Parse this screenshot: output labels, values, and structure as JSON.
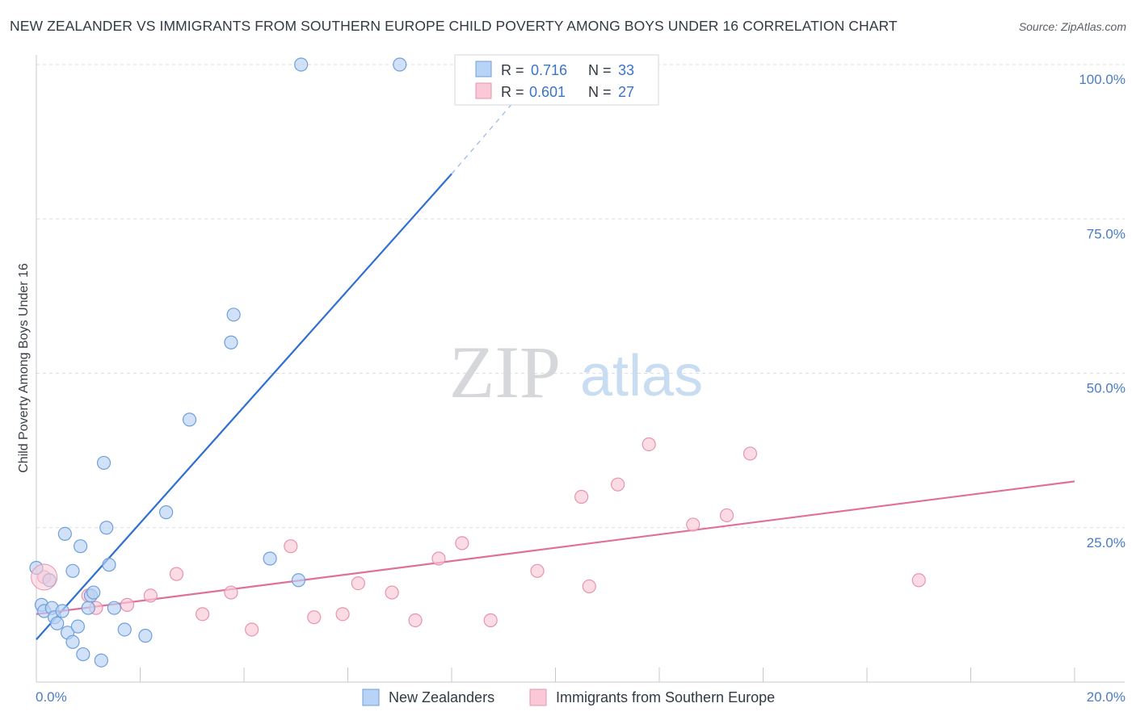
{
  "title": "NEW ZEALANDER VS IMMIGRANTS FROM SOUTHERN EUROPE CHILD POVERTY AMONG BOYS UNDER 16 CORRELATION CHART",
  "source": "Source: ZipAtlas.com",
  "watermark": {
    "zip": "ZIP",
    "atlas": "atlas"
  },
  "colors": {
    "blue_fill": "#b8d3f5",
    "blue_stroke": "#6f9fdc",
    "blue_line": "#2f6fd0",
    "pink_fill": "#f9c9d7",
    "pink_stroke": "#e893ae",
    "pink_line": "#e0709a",
    "grid": "#d9dde3",
    "tick_text": "#4a7cc7"
  },
  "legend": {
    "rows": [
      {
        "r_label": "R = ",
        "r_value": "0.716",
        "n_label": "N = ",
        "n_value": "33"
      },
      {
        "r_label": "R = ",
        "r_value": "0.601",
        "n_label": "N = ",
        "n_value": "27"
      }
    ]
  },
  "chart_data": {
    "type": "scatter",
    "xlabel": "",
    "ylabel": "Child Poverty Among Boys Under 16",
    "xlim": [
      0,
      20
    ],
    "ylim": [
      0,
      100
    ],
    "x_tick_labels": [
      "0.0%",
      "20.0%"
    ],
    "y_tick_labels": [
      "25.0%",
      "50.0%",
      "75.0%",
      "100.0%"
    ],
    "y_ticks": [
      25,
      50,
      75,
      100
    ],
    "grid": true,
    "series": [
      {
        "name": "New Zealanders",
        "r": 0.716,
        "n": 33,
        "points": [
          [
            0.0,
            18.5
          ],
          [
            0.1,
            12.5
          ],
          [
            0.15,
            11.5
          ],
          [
            0.25,
            16.5
          ],
          [
            0.3,
            12.0
          ],
          [
            0.35,
            10.5
          ],
          [
            0.4,
            9.5
          ],
          [
            0.5,
            11.5
          ],
          [
            0.55,
            24.0
          ],
          [
            0.6,
            8.0
          ],
          [
            0.7,
            18.0
          ],
          [
            0.7,
            6.5
          ],
          [
            0.8,
            9.0
          ],
          [
            0.85,
            22.0
          ],
          [
            0.9,
            4.5
          ],
          [
            1.0,
            12.0
          ],
          [
            1.05,
            14.0
          ],
          [
            1.1,
            14.5
          ],
          [
            1.25,
            3.5
          ],
          [
            1.3,
            35.5
          ],
          [
            1.35,
            25.0
          ],
          [
            1.4,
            19.0
          ],
          [
            1.5,
            12.0
          ],
          [
            1.7,
            8.5
          ],
          [
            2.1,
            7.5
          ],
          [
            2.5,
            27.5
          ],
          [
            2.95,
            42.5
          ],
          [
            3.75,
            55.0
          ],
          [
            3.8,
            59.5
          ],
          [
            4.5,
            20.0
          ],
          [
            5.05,
            16.5
          ],
          [
            5.1,
            100.0
          ],
          [
            7.0,
            100.0
          ]
        ],
        "trend": {
          "x": [
            0,
            8
          ],
          "y": [
            6.9,
            82.3
          ],
          "dashed_x": [
            8,
            9.2
          ],
          "dashed_y": [
            82.3,
            94.0
          ]
        }
      },
      {
        "name": "Immigrants from Southern Europe",
        "r": 0.601,
        "n": 27,
        "points": [
          [
            0.15,
            17.0
          ],
          [
            1.0,
            14.0
          ],
          [
            1.15,
            12.0
          ],
          [
            1.75,
            12.5
          ],
          [
            2.2,
            14.0
          ],
          [
            2.7,
            17.5
          ],
          [
            3.2,
            11.0
          ],
          [
            3.75,
            14.5
          ],
          [
            4.15,
            8.5
          ],
          [
            4.9,
            22.0
          ],
          [
            5.35,
            10.5
          ],
          [
            5.9,
            11.0
          ],
          [
            6.2,
            16.0
          ],
          [
            6.85,
            14.5
          ],
          [
            7.3,
            10.0
          ],
          [
            7.75,
            20.0
          ],
          [
            8.2,
            22.5
          ],
          [
            8.75,
            10.0
          ],
          [
            9.65,
            18.0
          ],
          [
            10.5,
            30.0
          ],
          [
            10.65,
            15.5
          ],
          [
            11.2,
            32.0
          ],
          [
            11.8,
            38.5
          ],
          [
            12.65,
            25.5
          ],
          [
            13.3,
            27.0
          ],
          [
            13.75,
            37.0
          ],
          [
            17.0,
            16.5
          ]
        ],
        "trend": {
          "x": [
            0,
            20
          ],
          "y": [
            11.0,
            32.5
          ]
        }
      }
    ]
  },
  "bottom_legend": [
    {
      "label": "New Zealanders"
    },
    {
      "label": "Immigrants from Southern Europe"
    }
  ]
}
